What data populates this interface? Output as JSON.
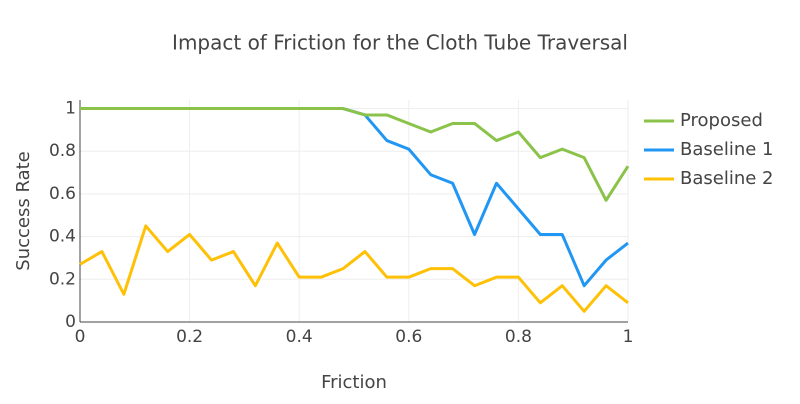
{
  "chart_data": {
    "type": "line",
    "title": "Impact of Friction for the Cloth Tube Traversal",
    "x_label": "Friction",
    "y_label": "Success Rate",
    "x": [
      0,
      0.04,
      0.08,
      0.12,
      0.16,
      0.2,
      0.24,
      0.28,
      0.32,
      0.36,
      0.4,
      0.44,
      0.48,
      0.52,
      0.56,
      0.6,
      0.64,
      0.68,
      0.72,
      0.76,
      0.8,
      0.84,
      0.88,
      0.92,
      0.96,
      1
    ],
    "series": [
      {
        "name": "Proposed",
        "color": "#8bc34a",
        "values": [
          1,
          1,
          1,
          1,
          1,
          1,
          1,
          1,
          1,
          1,
          1,
          1,
          1,
          0.97,
          0.97,
          0.93,
          0.89,
          0.93,
          0.93,
          0.85,
          0.89,
          0.77,
          0.81,
          0.77,
          0.57,
          0.73
        ]
      },
      {
        "name": "Baseline 1",
        "color": "#2196f3",
        "values": [
          1,
          1,
          1,
          1,
          1,
          1,
          1,
          1,
          1,
          1,
          1,
          1,
          1,
          0.97,
          0.85,
          0.81,
          0.69,
          0.65,
          0.41,
          0.65,
          0.53,
          0.41,
          0.41,
          0.17,
          0.29,
          0.37
        ]
      },
      {
        "name": "Baseline 2",
        "color": "#ffc107",
        "values": [
          0.27,
          0.33,
          0.13,
          0.45,
          0.33,
          0.41,
          0.29,
          0.33,
          0.17,
          0.37,
          0.21,
          0.21,
          0.25,
          0.33,
          0.21,
          0.21,
          0.25,
          0.25,
          0.17,
          0.21,
          0.21,
          0.09,
          0.17,
          0.05,
          0.17,
          0.09
        ]
      }
    ],
    "xlim": [
      0,
      1
    ],
    "ylim": [
      0,
      1.04
    ],
    "xticks": [
      0,
      0.2,
      0.4,
      0.6,
      0.8,
      1
    ],
    "yticks": [
      0,
      0.2,
      0.4,
      0.6,
      0.8,
      1
    ],
    "grid": true,
    "legend": "right"
  }
}
